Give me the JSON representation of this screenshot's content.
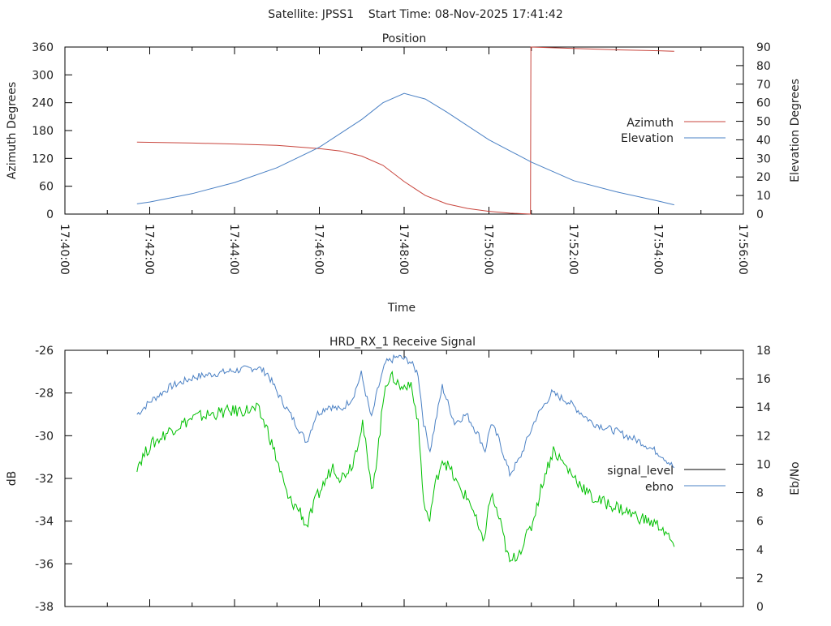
{
  "header": {
    "title": "Satellite: JPSS1    Start Time: 08-Nov-2025 17:41:42"
  },
  "colors": {
    "azimuth": "#c8443c",
    "elevation": "#4a80c4",
    "signal": "#4a80c4",
    "ebno": "#00c000",
    "signal_legend": "#000000",
    "ebno_legend": "#4a80c4"
  },
  "chart_data": [
    {
      "type": "line",
      "title": "Position",
      "xlabel": "Time",
      "ylabel": "Azimuth Degrees",
      "y2label": "Elevation Degrees",
      "x_unit": "minutes past 17:00",
      "xlim": [
        40,
        56
      ],
      "ylim": [
        0,
        360
      ],
      "y2lim": [
        0,
        90
      ],
      "xticks": [
        "17:40:00",
        "17:42:00",
        "17:44:00",
        "17:46:00",
        "17:48:00",
        "17:50:00",
        "17:52:00",
        "17:54:00",
        "17:56:00"
      ],
      "yticks": [
        "0",
        "60",
        "120",
        "180",
        "240",
        "300",
        "360"
      ],
      "y2ticks": [
        "0",
        "10",
        "20",
        "30",
        "40",
        "50",
        "60",
        "70",
        "80",
        "90"
      ],
      "legend_position": "right",
      "series": [
        {
          "name": "Azimuth",
          "axis": "y",
          "x": [
            41.7,
            43,
            44,
            45,
            46,
            46.5,
            47,
            47.5,
            48,
            48.5,
            49,
            49.5,
            50,
            50.5,
            50.98,
            50.99,
            52,
            53,
            54,
            54.37
          ],
          "values": [
            155,
            153,
            151,
            148,
            141,
            136,
            125,
            105,
            70,
            40,
            22,
            12,
            6,
            2,
            0,
            360,
            357,
            354,
            352,
            351
          ]
        },
        {
          "name": "Elevation",
          "axis": "y2",
          "x": [
            41.7,
            42,
            43,
            44,
            45,
            46,
            47,
            47.5,
            48,
            48.5,
            49,
            50,
            51,
            52,
            53,
            54,
            54.37
          ],
          "values": [
            5.5,
            6.5,
            11,
            17,
            25,
            36,
            51,
            60,
            65,
            62,
            55,
            40,
            28,
            18,
            12,
            7,
            5
          ]
        }
      ]
    },
    {
      "type": "line",
      "title": "HRD_RX_1 Receive Signal",
      "xlabel": "",
      "ylabel": "dB",
      "y2label": "Eb/No",
      "x_unit": "minutes past 17:00",
      "xlim": [
        40,
        56
      ],
      "ylim": [
        -38,
        -26
      ],
      "y2lim": [
        0,
        18
      ],
      "yticks": [
        "-38",
        "-36",
        "-34",
        "-32",
        "-30",
        "-28",
        "-26"
      ],
      "y2ticks": [
        "0",
        "2",
        "4",
        "6",
        "8",
        "10",
        "12",
        "14",
        "16",
        "18"
      ],
      "legend_position": "right",
      "series": [
        {
          "name": "signal_level",
          "axis": "y",
          "x": [
            41.7,
            42.01,
            42.49,
            43.06,
            43.83,
            44.55,
            44.78,
            45.07,
            45.36,
            45.7,
            45.93,
            46.22,
            46.51,
            46.79,
            46.99,
            47.23,
            47.37,
            47.56,
            47.85,
            48.13,
            48.33,
            48.46,
            48.61,
            48.9,
            49.19,
            49.47,
            49.76,
            49.91,
            50.05,
            50.24,
            50.49,
            50.72,
            51.1,
            51.48,
            51.87,
            52.44,
            53.01,
            53.59,
            54.07,
            54.37
          ],
          "values": [
            -29.0,
            -28.4,
            -27.7,
            -27.25,
            -27.0,
            -26.8,
            -27.1,
            -28.2,
            -29.15,
            -30.3,
            -29.0,
            -28.6,
            -28.8,
            -28.2,
            -27.1,
            -29.2,
            -27.9,
            -26.6,
            -26.3,
            -26.5,
            -27.1,
            -29.4,
            -30.7,
            -27.7,
            -29.4,
            -29.0,
            -30.0,
            -30.7,
            -29.4,
            -30.2,
            -31.8,
            -31.1,
            -29.2,
            -28.0,
            -28.4,
            -29.4,
            -29.8,
            -30.3,
            -30.9,
            -31.5
          ]
        },
        {
          "name": "ebno",
          "axis": "y2",
          "x": [
            41.7,
            42.01,
            42.49,
            43.06,
            43.83,
            44.55,
            44.78,
            45.07,
            45.26,
            45.55,
            45.7,
            45.93,
            46.12,
            46.32,
            46.51,
            46.79,
            47.02,
            47.23,
            47.37,
            47.56,
            47.75,
            47.94,
            48.13,
            48.33,
            48.46,
            48.57,
            48.77,
            48.9,
            49.09,
            49.28,
            49.57,
            49.86,
            50.05,
            50.24,
            50.49,
            50.72,
            51.0,
            51.29,
            51.52,
            51.87,
            52.44,
            53.01,
            53.59,
            54.07,
            54.37
          ],
          "values": [
            9.9,
            11.3,
            12.4,
            13.3,
            13.7,
            13.85,
            12.4,
            9.6,
            7.6,
            6.7,
            5.6,
            7.6,
            8.7,
            9.9,
            9.0,
            10.1,
            13.0,
            8.1,
            10.7,
            15.8,
            16.1,
            15.3,
            15.8,
            13.0,
            7.3,
            5.9,
            9.0,
            10.4,
            9.6,
            8.4,
            7.3,
            4.4,
            7.9,
            6.2,
            3.0,
            3.9,
            5.6,
            9.0,
            11.0,
            9.6,
            7.6,
            7.0,
            6.2,
            5.6,
            4.2
          ]
        }
      ]
    }
  ]
}
